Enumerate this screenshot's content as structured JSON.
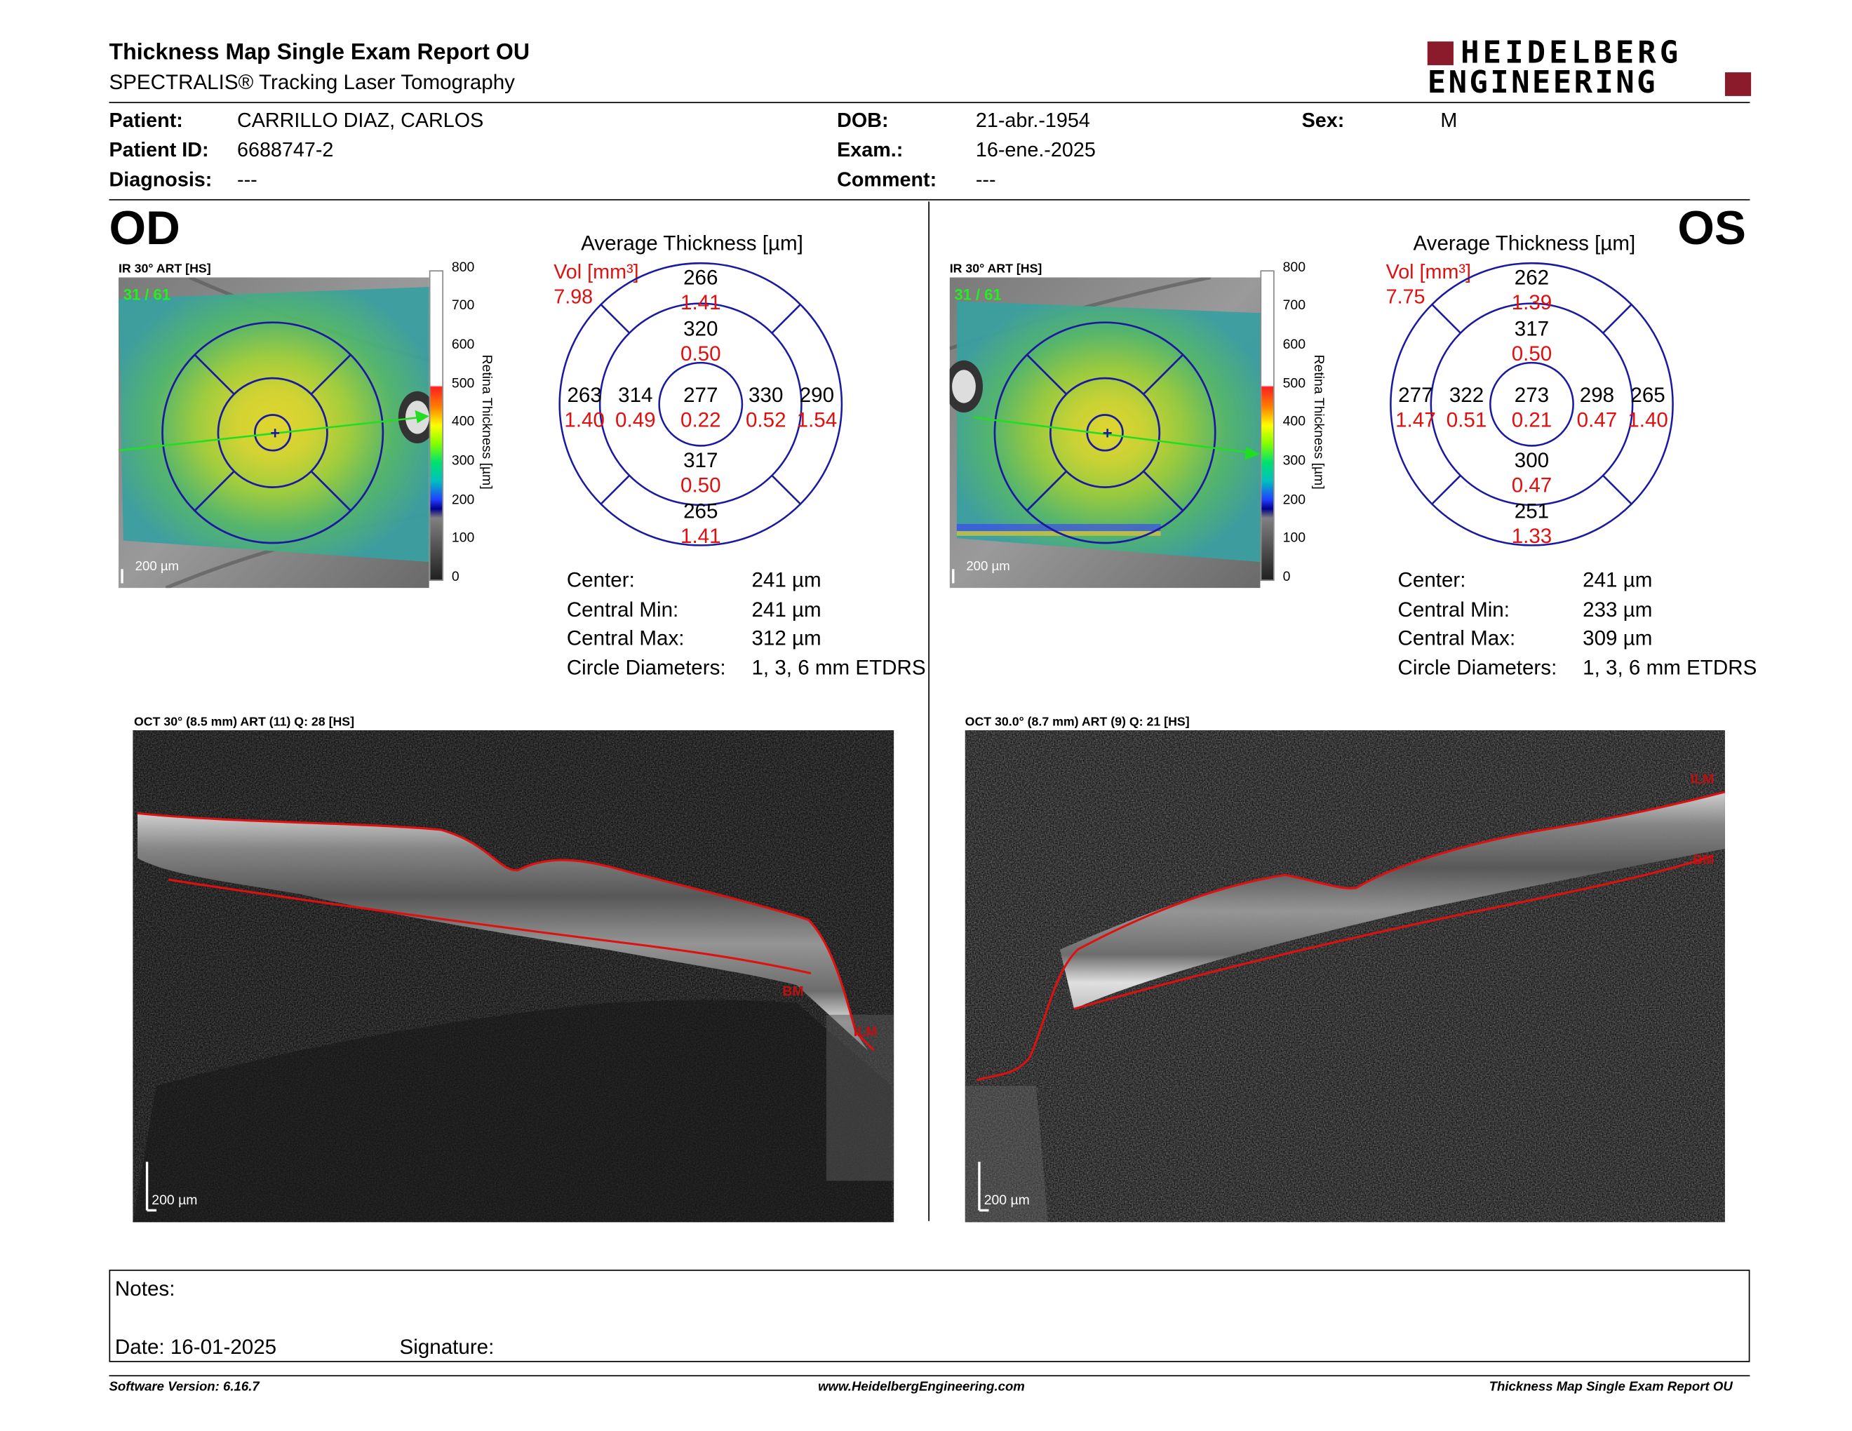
{
  "header": {
    "title": "Thickness Map Single Exam Report OU",
    "subtitle": "SPECTRALIS® Tracking Laser Tomography",
    "logo_line1": "HEIDELBERG",
    "logo_line2": "ENGINEERING",
    "logo_color": "#8b1a2b"
  },
  "patient": {
    "patient_label": "Patient:",
    "patient_value": "CARRILLO DIAZ, CARLOS",
    "id_label": "Patient ID:",
    "id_value": "6688747-2",
    "diagnosis_label": "Diagnosis:",
    "diagnosis_value": "---",
    "dob_label": "DOB:",
    "dob_value": "21-abr.-1954",
    "exam_label": "Exam.:",
    "exam_value": "16-ene.-2025",
    "comment_label": "Comment:",
    "comment_value": "---",
    "sex_label": "Sex:",
    "sex_value": "M"
  },
  "colorbar": {
    "title": "Retina Thickness [µm]",
    "ticks": [
      "800",
      "700",
      "600",
      "500",
      "400",
      "300",
      "200",
      "100",
      "0"
    ]
  },
  "od": {
    "eye_label": "OD",
    "ir_label": "IR 30° ART [HS]",
    "frame_counter": "31 / 61",
    "scale_label": "200 µm",
    "avg_title": "Average Thickness [µm]",
    "vol_label": "Vol [mm³]",
    "vol_total": "7.98",
    "etdrs": {
      "center": {
        "thickness": "277",
        "volume": "0.22"
      },
      "inner_superior": {
        "thickness": "320",
        "volume": "0.50"
      },
      "inner_inferior": {
        "thickness": "317",
        "volume": "0.50"
      },
      "inner_left": {
        "thickness": "314",
        "volume": "0.49"
      },
      "inner_right": {
        "thickness": "330",
        "volume": "0.52"
      },
      "outer_superior": {
        "thickness": "266",
        "volume": "1.41"
      },
      "outer_inferior": {
        "thickness": "265",
        "volume": "1.41"
      },
      "outer_left": {
        "thickness": "263",
        "volume": "1.40"
      },
      "outer_right": {
        "thickness": "290",
        "volume": "1.54"
      }
    },
    "stats": {
      "center_label": "Center:",
      "center_value": "241 µm",
      "min_label": "Central Min:",
      "min_value": "241 µm",
      "max_label": "Central Max:",
      "max_value": "312 µm",
      "diam_label": "Circle Diameters:",
      "diam_value": "1, 3, 6 mm ETDRS"
    },
    "oct_label": "OCT 30° (8.5 mm) ART (11) Q: 28 [HS]",
    "oct_scale": "200 µm",
    "ilm": "ILM",
    "bm": "BM"
  },
  "os": {
    "eye_label": "OS",
    "ir_label": "IR 30° ART [HS]",
    "frame_counter": "31 / 61",
    "scale_label": "200 µm",
    "avg_title": "Average Thickness [µm]",
    "vol_label": "Vol [mm³]",
    "vol_total": "7.75",
    "etdrs": {
      "center": {
        "thickness": "273",
        "volume": "0.21"
      },
      "inner_superior": {
        "thickness": "317",
        "volume": "0.50"
      },
      "inner_inferior": {
        "thickness": "300",
        "volume": "0.47"
      },
      "inner_left": {
        "thickness": "322",
        "volume": "0.51"
      },
      "inner_right": {
        "thickness": "298",
        "volume": "0.47"
      },
      "outer_superior": {
        "thickness": "262",
        "volume": "1.39"
      },
      "outer_inferior": {
        "thickness": "251",
        "volume": "1.33"
      },
      "outer_left": {
        "thickness": "277",
        "volume": "1.47"
      },
      "outer_right": {
        "thickness": "265",
        "volume": "1.40"
      }
    },
    "stats": {
      "center_label": "Center:",
      "center_value": "241 µm",
      "min_label": "Central Min:",
      "min_value": "233 µm",
      "max_label": "Central Max:",
      "max_value": "309 µm",
      "diam_label": "Circle Diameters:",
      "diam_value": "1, 3, 6 mm ETDRS"
    },
    "oct_label": "OCT 30.0° (8.7 mm) ART (9) Q: 21 [HS]",
    "oct_scale": "200 µm",
    "ilm": "ILM",
    "bm": "BM"
  },
  "notes": {
    "notes_label": "Notes:",
    "date_label": "Date: 16-01-2025",
    "signature_label": "Signature:"
  },
  "footer": {
    "software": "Software Version: 6.16.7",
    "website": "www.HeidelbergEngineering.com",
    "report_name": "Thickness Map Single Exam Report OU"
  },
  "colors": {
    "etdrs_ring": "#1a1aa0",
    "volume_text": "#e01010",
    "segmentation_line": "#e01010",
    "scan_arrow": "#22dd22"
  }
}
